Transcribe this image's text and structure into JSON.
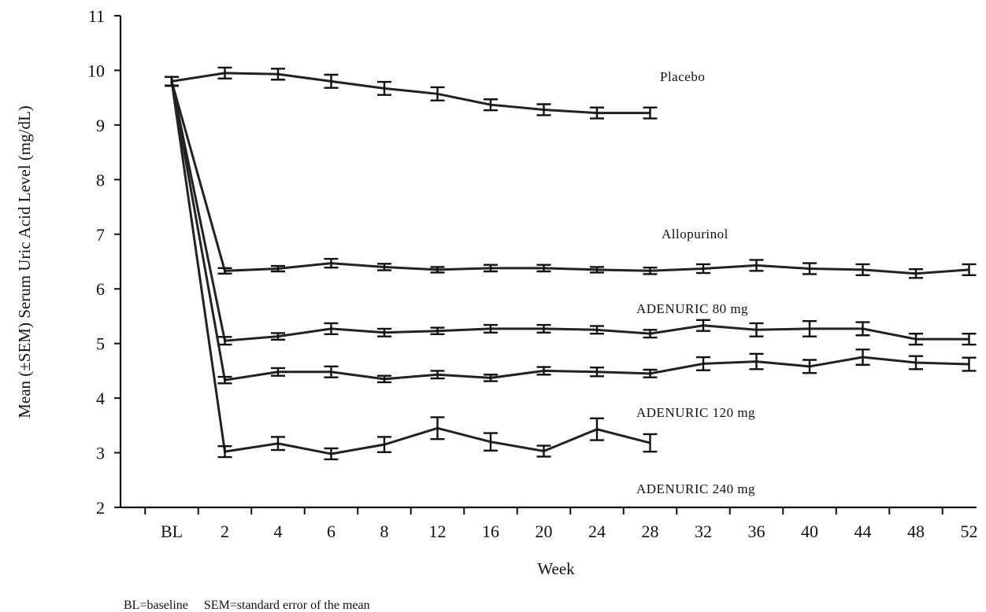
{
  "chart_data": {
    "type": "line",
    "title": "",
    "xlabel": "Week",
    "ylabel": "Mean (±SEM) Serum Uric Acid Level (mg/dL)",
    "ylim": [
      2,
      11
    ],
    "yticks": [
      2,
      3,
      4,
      5,
      6,
      7,
      8,
      9,
      10,
      11
    ],
    "categories": [
      "BL",
      "2",
      "4",
      "6",
      "8",
      "12",
      "16",
      "20",
      "24",
      "28",
      "32",
      "36",
      "40",
      "44",
      "48",
      "52"
    ],
    "grid": false,
    "series": [
      {
        "name": "Placebo",
        "values": [
          9.8,
          9.95,
          9.93,
          9.8,
          9.67,
          9.57,
          9.37,
          9.28,
          9.22,
          9.22,
          null,
          null,
          null,
          null,
          null,
          null
        ],
        "sem": [
          0.08,
          0.1,
          0.1,
          0.12,
          0.12,
          0.12,
          0.1,
          0.1,
          0.1,
          0.1,
          null,
          null,
          null,
          null,
          null,
          null
        ]
      },
      {
        "name": "Allopurinol",
        "values": [
          9.8,
          6.33,
          6.37,
          6.47,
          6.4,
          6.35,
          6.38,
          6.38,
          6.35,
          6.33,
          6.37,
          6.43,
          6.37,
          6.35,
          6.28,
          6.35
        ],
        "sem": [
          0.08,
          0.05,
          0.05,
          0.08,
          0.06,
          0.05,
          0.06,
          0.06,
          0.05,
          0.06,
          0.08,
          0.1,
          0.1,
          0.1,
          0.08,
          0.1
        ]
      },
      {
        "name": "ADENURIC 80 mg",
        "values": [
          9.8,
          5.05,
          5.13,
          5.27,
          5.2,
          5.23,
          5.27,
          5.27,
          5.25,
          5.18,
          5.33,
          5.25,
          5.27,
          5.27,
          5.08,
          5.08
        ],
        "sem": [
          0.08,
          0.07,
          0.06,
          0.1,
          0.07,
          0.06,
          0.07,
          0.07,
          0.07,
          0.07,
          0.1,
          0.12,
          0.14,
          0.12,
          0.1,
          0.1
        ]
      },
      {
        "name": "ADENURIC 120 mg",
        "values": [
          9.8,
          4.33,
          4.48,
          4.48,
          4.35,
          4.43,
          4.37,
          4.5,
          4.48,
          4.45,
          4.63,
          4.67,
          4.58,
          4.75,
          4.65,
          4.62
        ],
        "sem": [
          0.08,
          0.06,
          0.07,
          0.1,
          0.06,
          0.07,
          0.06,
          0.07,
          0.08,
          0.07,
          0.12,
          0.14,
          0.12,
          0.14,
          0.12,
          0.12
        ]
      },
      {
        "name": "ADENURIC 240 mg",
        "values": [
          9.8,
          3.02,
          3.17,
          2.98,
          3.15,
          3.45,
          3.2,
          3.03,
          3.43,
          3.18,
          null,
          null,
          null,
          null,
          null,
          null
        ],
        "sem": [
          0.08,
          0.1,
          0.12,
          0.1,
          0.14,
          0.2,
          0.16,
          0.1,
          0.2,
          0.16,
          null,
          null,
          null,
          null,
          null,
          null
        ]
      }
    ],
    "series_label_positions": [
      "right of line end",
      "above line",
      "above line",
      "above line",
      "below line"
    ]
  },
  "labels": {
    "placebo": "Placebo",
    "allopurinol": "Allopurinol",
    "adenuric80": "ADENURIC 80 mg",
    "adenuric120": "ADENURIC 120 mg",
    "adenuric240": "ADENURIC 240 mg"
  },
  "footnote": "BL=baseline     SEM=standard error of the mean",
  "colors": {
    "line": "#222222",
    "text": "#111111",
    "background": "#ffffff"
  }
}
